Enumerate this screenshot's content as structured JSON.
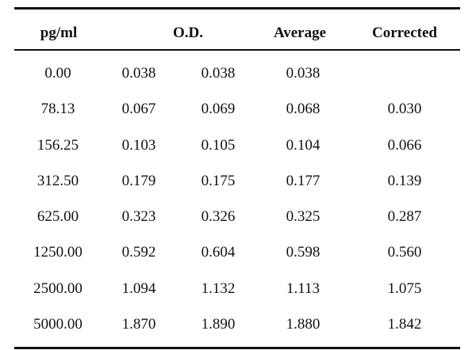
{
  "table": {
    "headers": {
      "pgml": "pg/ml",
      "od": "O.D.",
      "average": "Average",
      "corrected": "Corrected"
    },
    "rows": [
      {
        "pgml": "0.00",
        "od1": "0.038",
        "od2": "0.038",
        "average": "0.038",
        "corrected": ""
      },
      {
        "pgml": "78.13",
        "od1": "0.067",
        "od2": "0.069",
        "average": "0.068",
        "corrected": "0.030"
      },
      {
        "pgml": "156.25",
        "od1": "0.103",
        "od2": "0.105",
        "average": "0.104",
        "corrected": "0.066"
      },
      {
        "pgml": "312.50",
        "od1": "0.179",
        "od2": "0.175",
        "average": "0.177",
        "corrected": "0.139"
      },
      {
        "pgml": "625.00",
        "od1": "0.323",
        "od2": "0.326",
        "average": "0.325",
        "corrected": "0.287"
      },
      {
        "pgml": "1250.00",
        "od1": "0.592",
        "od2": "0.604",
        "average": "0.598",
        "corrected": "0.560"
      },
      {
        "pgml": "2500.00",
        "od1": "1.094",
        "od2": "1.132",
        "average": "1.113",
        "corrected": "1.075"
      },
      {
        "pgml": "5000.00",
        "od1": "1.870",
        "od2": "1.890",
        "average": "1.880",
        "corrected": "1.842"
      }
    ]
  }
}
